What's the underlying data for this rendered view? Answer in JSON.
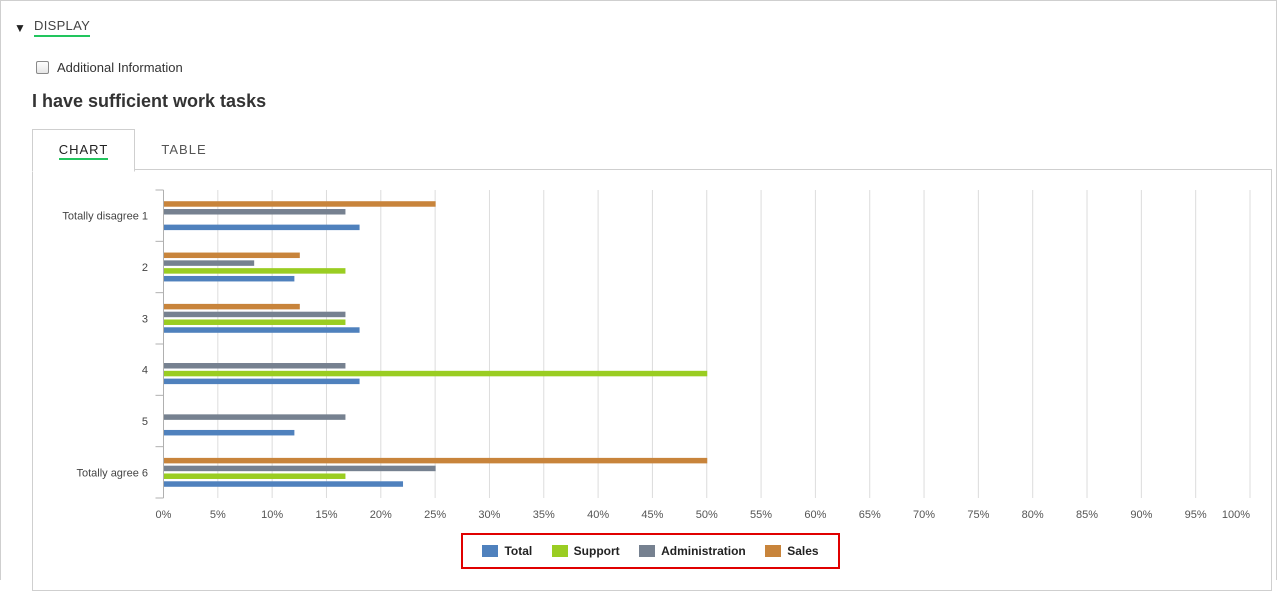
{
  "display_toggle": {
    "arrow": "▼",
    "label": "DISPLAY"
  },
  "additional_info": {
    "label": "Additional Information",
    "checked": false
  },
  "question": {
    "title": "I have sufficient work tasks"
  },
  "tabs": [
    {
      "label": "CHART",
      "active": true
    },
    {
      "label": "TABLE",
      "active": false
    }
  ],
  "colors": {
    "Total": "#4f81bd",
    "Support": "#9acd22",
    "Administration": "#768190",
    "Sales": "#c8843b"
  },
  "chart_data": {
    "type": "bar",
    "orientation": "horizontal",
    "title": "",
    "xlabel": "",
    "ylabel": "",
    "categories": [
      "Totally disagree 1",
      "2",
      "3",
      "4",
      "5",
      "Totally agree 6"
    ],
    "xlim": [
      0,
      100
    ],
    "x_ticks": [
      "0%",
      "5%",
      "10%",
      "15%",
      "20%",
      "25%",
      "30%",
      "35%",
      "40%",
      "45%",
      "50%",
      "55%",
      "60%",
      "65%",
      "70%",
      "75%",
      "80%",
      "85%",
      "90%",
      "95%",
      "100%"
    ],
    "grid": true,
    "series": [
      {
        "name": "Sales",
        "values": [
          25,
          12.5,
          12.5,
          0,
          0,
          50
        ]
      },
      {
        "name": "Administration",
        "values": [
          16.7,
          8.3,
          16.7,
          16.7,
          16.7,
          25
        ]
      },
      {
        "name": "Support",
        "values": [
          0,
          16.7,
          16.7,
          50,
          0,
          16.7
        ]
      },
      {
        "name": "Total",
        "values": [
          18,
          12,
          18,
          18,
          12,
          22
        ]
      }
    ],
    "legend": {
      "position": "bottom-center",
      "items": [
        "Total",
        "Support",
        "Administration",
        "Sales"
      ]
    }
  }
}
